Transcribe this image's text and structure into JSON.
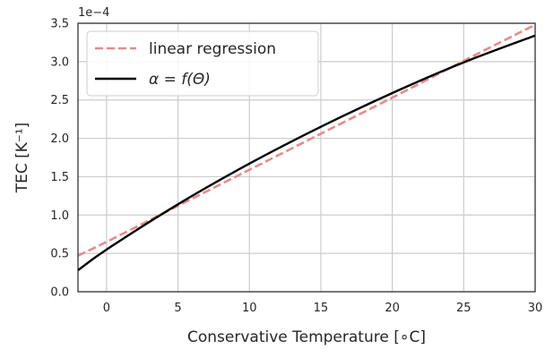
{
  "chart_data": {
    "type": "line",
    "xlabel": "Conservative Temperature [∘C]",
    "ylabel": "TEC [K⁻¹]",
    "y_offset_text": "1e−4",
    "xlim": [
      -2,
      30
    ],
    "ylim": [
      0.0,
      3.5
    ],
    "x_ticks": [
      0,
      5,
      10,
      15,
      20,
      25,
      30
    ],
    "x_tick_labels": [
      "0",
      "5",
      "10",
      "15",
      "20",
      "25",
      "30"
    ],
    "y_ticks": [
      0.0,
      0.5,
      1.0,
      1.5,
      2.0,
      2.5,
      3.0,
      3.5
    ],
    "y_tick_labels": [
      "0.0",
      "0.5",
      "1.0",
      "1.5",
      "2.0",
      "2.5",
      "3.0",
      "3.5"
    ],
    "grid": true,
    "legend_position": "upper-left",
    "series": [
      {
        "name": "linear regression",
        "style": "dashed",
        "color": "#e88a8a",
        "x": [
          -2,
          0,
          5,
          10,
          15,
          20,
          25,
          30
        ],
        "y": [
          0.47,
          0.65,
          1.12,
          1.59,
          2.06,
          2.53,
          3.01,
          3.48
        ]
      },
      {
        "name": "α = f(Θ)",
        "style": "solid",
        "color": "#000000",
        "x": [
          -2,
          0,
          5,
          10,
          15,
          20,
          25,
          30
        ],
        "y": [
          0.28,
          0.55,
          1.14,
          1.67,
          2.15,
          2.59,
          2.99,
          3.34
        ]
      }
    ]
  }
}
